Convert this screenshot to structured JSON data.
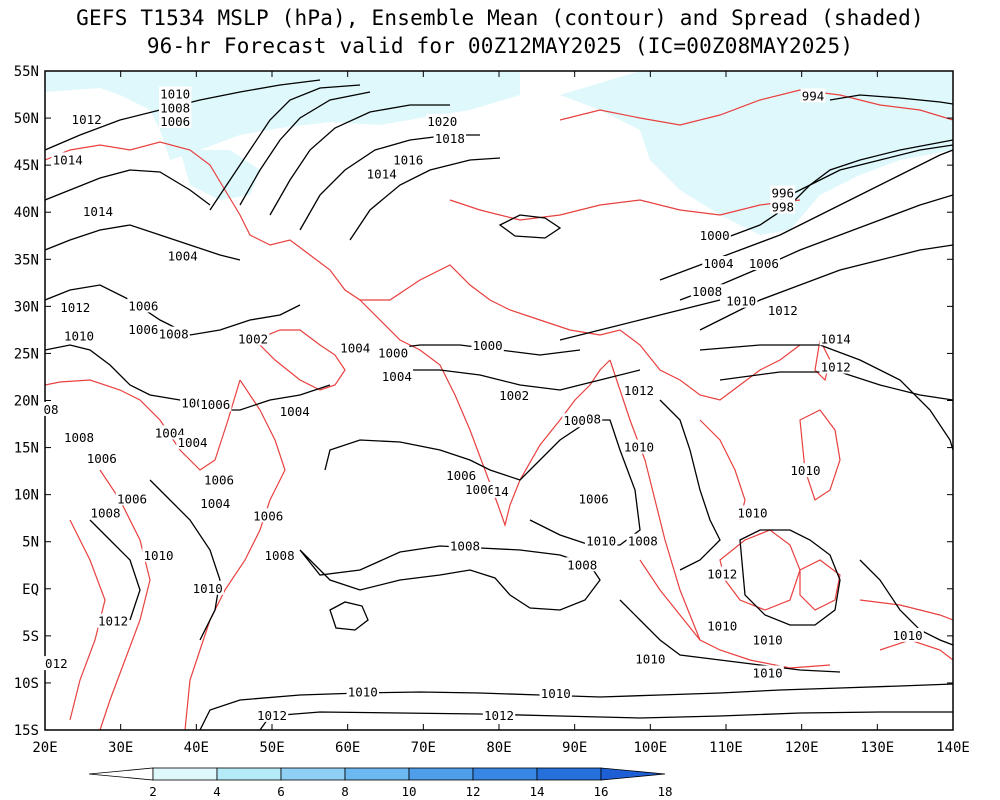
{
  "header": {
    "title_line1": "GEFS T1534 MSLP (hPa), Ensemble Mean (contour) and Spread (shaded)",
    "title_line2": "96-hr Forecast valid for 00Z12MAY2025 (IC=00Z08MAY2025)"
  },
  "axes": {
    "lat_labels": [
      "55N",
      "50N",
      "45N",
      "40N",
      "35N",
      "30N",
      "25N",
      "20N",
      "15N",
      "10N",
      "5N",
      "EQ",
      "5S",
      "10S",
      "15S"
    ],
    "lon_labels": [
      "20E",
      "30E",
      "40E",
      "50E",
      "60E",
      "70E",
      "80E",
      "90E",
      "100E",
      "110E",
      "120E",
      "130E",
      "140E"
    ]
  },
  "colorbar": {
    "ticks": [
      "2",
      "4",
      "6",
      "8",
      "10",
      "12",
      "14",
      "16",
      "18"
    ],
    "colors": [
      "#ffffff",
      "#dff8fb",
      "#b5eaf7",
      "#8fd0f5",
      "#6cb8f0",
      "#4e9eea",
      "#3987e4",
      "#2670dc",
      "#1f5fd6"
    ]
  },
  "contour_labels": [
    {
      "text": "1010",
      "lon": 37.2,
      "lat": 52.5
    },
    {
      "text": "1008",
      "lon": 37.2,
      "lat": 51.0
    },
    {
      "text": "1006",
      "lon": 37.2,
      "lat": 49.6
    },
    {
      "text": "1012",
      "lon": 25.5,
      "lat": 49.8
    },
    {
      "text": "1014",
      "lon": 23.0,
      "lat": 45.5
    },
    {
      "text": "1014",
      "lon": 27.0,
      "lat": 40.0
    },
    {
      "text": "1020",
      "lon": 72.5,
      "lat": 49.6
    },
    {
      "text": "1018",
      "lon": 73.5,
      "lat": 47.8
    },
    {
      "text": "1016",
      "lon": 68.0,
      "lat": 45.5
    },
    {
      "text": "1014",
      "lon": 64.5,
      "lat": 44.0
    },
    {
      "text": "994",
      "lon": 121.5,
      "lat": 52.3
    },
    {
      "text": "996",
      "lon": 117.5,
      "lat": 42.0
    },
    {
      "text": "998",
      "lon": 117.5,
      "lat": 40.5
    },
    {
      "text": "1000",
      "lon": 108.5,
      "lat": 37.5
    },
    {
      "text": "1004",
      "lon": 109.0,
      "lat": 34.5
    },
    {
      "text": "1006",
      "lon": 115.0,
      "lat": 34.5
    },
    {
      "text": "1008",
      "lon": 107.5,
      "lat": 31.5
    },
    {
      "text": "1010",
      "lon": 112.0,
      "lat": 30.5
    },
    {
      "text": "1012",
      "lon": 117.5,
      "lat": 29.5
    },
    {
      "text": "1014",
      "lon": 124.5,
      "lat": 26.5
    },
    {
      "text": "1012",
      "lon": 124.5,
      "lat": 23.5
    },
    {
      "text": "1004",
      "lon": 38.2,
      "lat": 35.3
    },
    {
      "text": "1012",
      "lon": 24.0,
      "lat": 29.8
    },
    {
      "text": "1010",
      "lon": 24.5,
      "lat": 26.8
    },
    {
      "text": "1006",
      "lon": 33.0,
      "lat": 30.0
    },
    {
      "text": "1006",
      "lon": 33.0,
      "lat": 27.5
    },
    {
      "text": "1008",
      "lon": 37.0,
      "lat": 27.0
    },
    {
      "text": "1002",
      "lon": 47.5,
      "lat": 26.5
    },
    {
      "text": "1004",
      "lon": 61.0,
      "lat": 25.5
    },
    {
      "text": "1000",
      "lon": 66.0,
      "lat": 25.0
    },
    {
      "text": "1004",
      "lon": 66.5,
      "lat": 22.5
    },
    {
      "text": "1000",
      "lon": 78.5,
      "lat": 25.8
    },
    {
      "text": "1002",
      "lon": 82.0,
      "lat": 20.5
    },
    {
      "text": "1012",
      "lon": 98.5,
      "lat": 21.0
    },
    {
      "text": "100",
      "lon": 39.5,
      "lat": 19.7
    },
    {
      "text": "1006",
      "lon": 42.5,
      "lat": 19.5
    },
    {
      "text": "1004",
      "lon": 53.0,
      "lat": 18.8
    },
    {
      "text": "08",
      "lon": 20.8,
      "lat": 19.0
    },
    {
      "text": "1008",
      "lon": 24.5,
      "lat": 16.0
    },
    {
      "text": "1004",
      "lon": 36.5,
      "lat": 16.5
    },
    {
      "text": "1004",
      "lon": 39.5,
      "lat": 15.5
    },
    {
      "text": "1006",
      "lon": 27.5,
      "lat": 13.8
    },
    {
      "text": "1006",
      "lon": 43.0,
      "lat": 11.5
    },
    {
      "text": "1006",
      "lon": 75.0,
      "lat": 12.0
    },
    {
      "text": "1006",
      "lon": 77.5,
      "lat": 10.5
    },
    {
      "text": "14",
      "lon": 80.3,
      "lat": 10.3
    },
    {
      "text": "1008",
      "lon": 91.5,
      "lat": 18.0
    },
    {
      "text": "100",
      "lon": 90.0,
      "lat": 17.8
    },
    {
      "text": "1010",
      "lon": 98.5,
      "lat": 15.0
    },
    {
      "text": "1006",
      "lon": 92.5,
      "lat": 9.5
    },
    {
      "text": "1006",
      "lon": 31.5,
      "lat": 9.5
    },
    {
      "text": "1004",
      "lon": 42.5,
      "lat": 9.0
    },
    {
      "text": "1006",
      "lon": 49.5,
      "lat": 7.7
    },
    {
      "text": "1008",
      "lon": 28.0,
      "lat": 8.0
    },
    {
      "text": "1008",
      "lon": 51.0,
      "lat": 3.5
    },
    {
      "text": "1008",
      "lon": 75.5,
      "lat": 4.5
    },
    {
      "text": "1008",
      "lon": 91.0,
      "lat": 2.5
    },
    {
      "text": "1010",
      "lon": 93.5,
      "lat": 5.0
    },
    {
      "text": "1008",
      "lon": 99.0,
      "lat": 5.0
    },
    {
      "text": "1010",
      "lon": 35.0,
      "lat": 3.5
    },
    {
      "text": "1010",
      "lon": 41.5,
      "lat": 0.0
    },
    {
      "text": "1012",
      "lon": 29.0,
      "lat": -3.5
    },
    {
      "text": "012",
      "lon": 21.5,
      "lat": -8.0
    },
    {
      "text": "1010",
      "lon": 113.5,
      "lat": 8.0
    },
    {
      "text": "1012",
      "lon": 109.5,
      "lat": 1.5
    },
    {
      "text": "1010",
      "lon": 109.5,
      "lat": -4.0
    },
    {
      "text": "1010",
      "lon": 115.5,
      "lat": -5.5
    },
    {
      "text": "1010",
      "lon": 120.5,
      "lat": 12.5
    },
    {
      "text": "1010",
      "lon": 100.0,
      "lat": -7.5
    },
    {
      "text": "1010",
      "lon": 115.5,
      "lat": -9.0
    },
    {
      "text": "1010",
      "lon": 134.0,
      "lat": -5.0
    },
    {
      "text": "1010",
      "lon": 62.0,
      "lat": -11.0
    },
    {
      "text": "1010",
      "lon": 87.5,
      "lat": -11.2
    },
    {
      "text": "1012",
      "lon": 50.0,
      "lat": -13.5
    },
    {
      "text": "1012",
      "lon": 80.0,
      "lat": -13.5
    }
  ]
}
